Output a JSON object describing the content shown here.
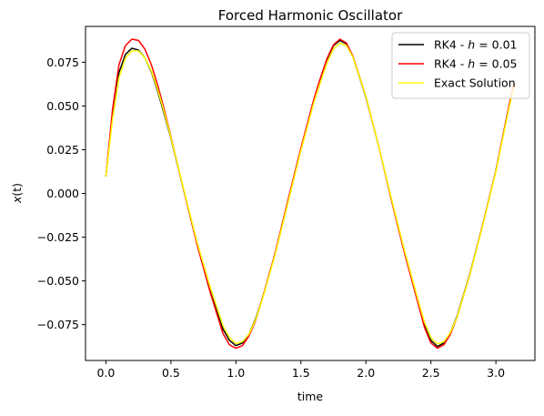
{
  "chart_data": {
    "type": "line",
    "title": "Forced Harmonic Oscillator",
    "xlabel": "time",
    "ylabel_main": "x",
    "ylabel_arg": "(t)",
    "xlim": [
      -0.157,
      3.3
    ],
    "ylim": [
      -0.0955,
      0.0955
    ],
    "xticks": [
      0.0,
      0.5,
      1.0,
      1.5,
      2.0,
      2.5,
      3.0
    ],
    "xtick_labels": [
      "0.0",
      "0.5",
      "1.0",
      "1.5",
      "2.0",
      "2.5",
      "3.0"
    ],
    "yticks": [
      -0.075,
      -0.05,
      -0.025,
      0.0,
      0.025,
      0.05,
      0.075
    ],
    "ytick_labels": [
      "−0.075",
      "−0.050",
      "−0.025",
      "0.000",
      "0.025",
      "0.050",
      "0.075"
    ],
    "legend_position": "upper right",
    "series": [
      {
        "legend_prefix": "RK4 - ",
        "legend_var": "h",
        "legend_value": " = 0.01",
        "color": "#000000",
        "x": [
          0.0,
          0.05,
          0.1,
          0.15,
          0.2,
          0.25,
          0.3,
          0.35,
          0.4,
          0.45,
          0.5,
          0.6,
          0.7,
          0.8,
          0.9,
          0.95,
          1.0,
          1.05,
          1.1,
          1.15,
          1.2,
          1.3,
          1.4,
          1.5,
          1.6,
          1.65,
          1.7,
          1.75,
          1.8,
          1.85,
          1.9,
          2.0,
          2.1,
          2.2,
          2.3,
          2.4,
          2.45,
          2.5,
          2.55,
          2.6,
          2.65,
          2.7,
          2.8,
          2.9,
          3.0,
          3.1,
          3.14
        ],
        "y": [
          0.0098,
          0.045,
          0.069,
          0.0795,
          0.083,
          0.082,
          0.0775,
          0.0695,
          0.058,
          0.045,
          0.0315,
          0.0015,
          -0.028,
          -0.054,
          -0.0775,
          -0.084,
          -0.087,
          -0.0855,
          -0.0805,
          -0.072,
          -0.061,
          -0.035,
          -0.005,
          0.025,
          0.053,
          0.065,
          0.0765,
          0.0845,
          0.0875,
          0.0855,
          0.078,
          0.055,
          0.0265,
          -0.0045,
          -0.0345,
          -0.062,
          -0.0755,
          -0.084,
          -0.0875,
          -0.0855,
          -0.0795,
          -0.0705,
          -0.046,
          -0.0175,
          0.013,
          0.0495,
          0.062
        ]
      },
      {
        "legend_prefix": "RK4 - ",
        "legend_var": "h",
        "legend_value": " = 0.05",
        "color": "#ff0000",
        "x": [
          0.0,
          0.05,
          0.1,
          0.15,
          0.2,
          0.25,
          0.3,
          0.35,
          0.4,
          0.45,
          0.5,
          0.6,
          0.7,
          0.8,
          0.9,
          0.95,
          1.0,
          1.05,
          1.1,
          1.15,
          1.2,
          1.3,
          1.4,
          1.5,
          1.6,
          1.65,
          1.7,
          1.75,
          1.8,
          1.85,
          1.9,
          2.0,
          2.1,
          2.2,
          2.3,
          2.4,
          2.45,
          2.5,
          2.55,
          2.6,
          2.65,
          2.7,
          2.8,
          2.9,
          3.0,
          3.1,
          3.14
        ],
        "y": [
          0.0098,
          0.0475,
          0.0735,
          0.0845,
          0.0882,
          0.0875,
          0.0825,
          0.0735,
          0.0615,
          0.0475,
          0.0325,
          0.0015,
          -0.029,
          -0.056,
          -0.08,
          -0.0865,
          -0.0885,
          -0.087,
          -0.0815,
          -0.073,
          -0.061,
          -0.0345,
          -0.004,
          0.026,
          0.054,
          0.066,
          0.077,
          0.085,
          0.0882,
          0.086,
          0.0785,
          0.0555,
          0.0265,
          -0.005,
          -0.035,
          -0.0625,
          -0.0765,
          -0.0855,
          -0.0885,
          -0.0865,
          -0.0805,
          -0.071,
          -0.0465,
          -0.0175,
          0.013,
          0.05,
          0.063
        ]
      },
      {
        "legend_prefix": "Exact Solution",
        "legend_var": "",
        "legend_value": "",
        "color": "#ffff00",
        "x": [
          0.0,
          0.05,
          0.1,
          0.15,
          0.2,
          0.25,
          0.3,
          0.35,
          0.4,
          0.45,
          0.5,
          0.6,
          0.7,
          0.8,
          0.9,
          0.95,
          1.0,
          1.05,
          1.1,
          1.15,
          1.2,
          1.3,
          1.4,
          1.5,
          1.6,
          1.65,
          1.7,
          1.75,
          1.8,
          1.85,
          1.9,
          2.0,
          2.1,
          2.2,
          2.3,
          2.4,
          2.45,
          2.5,
          2.55,
          2.6,
          2.65,
          2.7,
          2.8,
          2.9,
          3.0,
          3.1,
          3.14
        ],
        "y": [
          0.0098,
          0.042,
          0.066,
          0.0775,
          0.0815,
          0.0815,
          0.0775,
          0.07,
          0.059,
          0.046,
          0.032,
          0.002,
          -0.0275,
          -0.053,
          -0.0755,
          -0.0825,
          -0.0858,
          -0.0848,
          -0.0805,
          -0.0725,
          -0.0615,
          -0.0355,
          -0.0055,
          0.0245,
          0.052,
          0.0635,
          0.0745,
          0.0825,
          0.086,
          0.0845,
          0.078,
          0.0555,
          0.0265,
          -0.004,
          -0.0335,
          -0.0605,
          -0.0735,
          -0.0825,
          -0.086,
          -0.0848,
          -0.0795,
          -0.071,
          -0.0465,
          -0.018,
          0.0125,
          0.0485,
          0.061
        ]
      }
    ]
  }
}
